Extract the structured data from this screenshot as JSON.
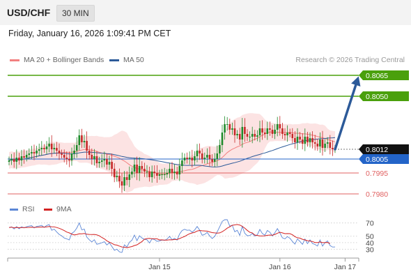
{
  "header": {
    "symbol": "USD/CHF",
    "timeframe": "30 MIN",
    "timestamp": "Friday, January 16, 2026 1:09:41 PM CET"
  },
  "legend": {
    "ma20": "MA 20 + Bollinger Bands",
    "ma50": "MA 50",
    "credit": "Research © 2026 Trading Central"
  },
  "rsi_legend": {
    "rsi": "RSI",
    "ma": "9MA"
  },
  "colors": {
    "up": "#1e8a2a",
    "down": "#c62828",
    "ma20": "#f28080",
    "band_fill": "#fbd9d9",
    "ma50": "#2c5a99",
    "target_line": "#4aa00c",
    "current_line": "#2364c8",
    "support_line": "#e06060",
    "rsi": "#5b86d6",
    "rsi_ma": "#d32222"
  },
  "chart_data": [
    {
      "type": "candlestick",
      "title": "USD/CHF",
      "ylim": [
        0.7974,
        0.8069
      ],
      "xticks": [
        {
          "index": 60,
          "label": "Jan 15"
        },
        {
          "index": 108,
          "label": "Jan 16"
        },
        {
          "index": 134,
          "label": "Jan 17"
        }
      ],
      "closes": [
        0.8004,
        0.8005,
        0.8003,
        0.8006,
        0.8004,
        0.8007,
        0.8006,
        0.8008,
        0.8009,
        0.801,
        0.8009,
        0.8011,
        0.8012,
        0.8013,
        0.8012,
        0.8014,
        0.8016,
        0.8012,
        0.8013,
        0.8011,
        0.8009,
        0.8008,
        0.8006,
        0.8005,
        0.8004,
        0.8009,
        0.8011,
        0.8015,
        0.8022,
        0.8017,
        0.8018,
        0.8011,
        0.8008,
        0.8005,
        0.8007,
        0.8002,
        0.8003,
        0.8004,
        0.8005,
        0.8001,
        0.8003,
        0.7998,
        0.7992,
        0.7993,
        0.7989,
        0.7986,
        0.7992,
        0.799,
        0.7994,
        0.7996,
        0.8001,
        0.7995,
        0.8,
        0.7998,
        0.7996,
        0.7996,
        0.7992,
        0.7996,
        0.7995,
        0.7993,
        0.7994,
        0.7994,
        0.7994,
        0.7995,
        0.7998,
        0.7995,
        0.7996,
        0.7994,
        0.8,
        0.8004,
        0.8006,
        0.8005,
        0.8006,
        0.8004,
        0.8007,
        0.8011,
        0.8009,
        0.8005,
        0.8006,
        0.8008,
        0.8005,
        0.8003,
        0.8005,
        0.8009,
        0.8015,
        0.8024,
        0.803,
        0.803,
        0.8026,
        0.8027,
        0.8022,
        0.8023,
        0.8019,
        0.8028,
        0.8023,
        0.8021,
        0.8021,
        0.8023,
        0.8021,
        0.8022,
        0.8027,
        0.8024,
        0.8023,
        0.8027,
        0.8026,
        0.8023,
        0.8026,
        0.803,
        0.8027,
        0.8023,
        0.8022,
        0.8024,
        0.8023,
        0.802,
        0.8017,
        0.8021,
        0.8019,
        0.8016,
        0.8021,
        0.8017,
        0.802,
        0.8017,
        0.8016,
        0.8014,
        0.8019,
        0.8013,
        0.8016,
        0.8017,
        0.8013,
        0.8012,
        0.8012
      ],
      "projection": {
        "from": 0.8012,
        "to": 0.8065
      },
      "levels": [
        {
          "value": 0.8065,
          "label": "0.8065",
          "kind": "target"
        },
        {
          "value": 0.805,
          "label": "0.8050",
          "kind": "target"
        },
        {
          "value": 0.8012,
          "label": "0.8012",
          "kind": "current"
        },
        {
          "value": 0.8005,
          "label": "0.8005",
          "kind": "pivot"
        },
        {
          "value": 0.7995,
          "label": "0.7995",
          "kind": "support"
        },
        {
          "value": 0.798,
          "label": "0.7980",
          "kind": "support"
        }
      ]
    },
    {
      "type": "line",
      "title": "RSI",
      "ylim": [
        25,
        75
      ],
      "yticks": [
        70,
        50,
        40,
        30
      ],
      "series": [
        {
          "name": "RSI",
          "values": [
            63.1,
            64.1,
            60.9,
            64.5,
            61.3,
            64.2,
            62.6,
            64.4,
            65.2,
            66,
            62.5,
            64.8,
            65.3,
            66.4,
            63.3,
            66.2,
            67.7,
            58.8,
            60.6,
            56.3,
            52.6,
            50.4,
            47.1,
            45.9,
            44.1,
            54.1,
            56.8,
            62.2,
            70.2,
            59.6,
            60.7,
            48.5,
            44.4,
            41.2,
            44.5,
            37.6,
            38.5,
            39.9,
            41.4,
            36.5,
            39.9,
            34.1,
            28.4,
            30,
            26.1,
            24.8,
            36.7,
            33.4,
            40.6,
            43.7,
            51.5,
            43,
            50.5,
            47.1,
            45,
            44.4,
            39.6,
            45.7,
            44.7,
            42,
            42.8,
            43.9,
            43.6,
            45.4,
            49.6,
            44.6,
            46.7,
            43.8,
            53.2,
            58.5,
            60.4,
            58.8,
            59.3,
            56,
            59.3,
            64.7,
            59.2,
            51.3,
            52.5,
            55.6,
            50.2,
            46.4,
            49.6,
            56.5,
            64.3,
            72.5,
            77,
            75.4,
            65.2,
            66.6,
            56.7,
            58.8,
            51.1,
            64.8,
            54.3,
            50.5,
            50.9,
            54,
            50,
            52,
            60.1,
            53.9,
            51.4,
            58.6,
            56,
            50.2,
            55.2,
            61.4,
            54.8,
            47.4,
            45.8,
            49.2,
            46.7,
            41.8,
            37.8,
            45.6,
            41.8,
            37.5,
            45.6,
            38.5,
            44.4,
            38.7,
            37.2,
            34.9,
            44.1,
            34.8,
            40,
            42.7,
            35.6,
            33.3,
            33.4
          ]
        },
        {
          "name": "9MA",
          "values": [
            63.1,
            63.6,
            62.7,
            63.2,
            62.8,
            63,
            63,
            63.2,
            63.3,
            63.6,
            63.3,
            63.4,
            63.7,
            63.9,
            63.7,
            64.2,
            64.6,
            64.3,
            64.2,
            63.1,
            61.9,
            60.3,
            58.4,
            56.2,
            54.9,
            53.1,
            51.8,
            52.4,
            53.6,
            53.4,
            53.9,
            52.9,
            52.5,
            52.3,
            52.6,
            51.9,
            50.4,
            47.9,
            45.8,
            42.8,
            40.7,
            39,
            36.8,
            36.3,
            34.8,
            33.4,
            33.1,
            32.3,
            33.2,
            34,
            35.6,
            36.7,
            39.2,
            41.7,
            45.3,
            46.3,
            46.6,
            46.1,
            46.1,
            45.8,
            44.2,
            44.3,
            43.9,
            43.9,
            44.4,
            44.3,
            44.8,
            44.8,
            46.3,
            48,
            49.5,
            51.7,
            53.6,
            54.8,
            55.7,
            57.8,
            58.5,
            58.1,
            57.9,
            57.5,
            56.4,
            55.3,
            54.9,
            54.6,
            54.9,
            56.7,
            59.2,
            62.1,
            64.1,
            66.5,
            67.1,
            67.7,
            66.9,
            64.9,
            62.1,
            58.7,
            55.8,
            54.9,
            51.6,
            51,
            50.3,
            50.3,
            50.4,
            51.2,
            51.6,
            51.4,
            52.6,
            54.4,
            55.9,
            54.9,
            53.7,
            53.8,
            53.7,
            52,
            49.1,
            47.5,
            46.9,
            45.1,
            44.2,
            43,
            42.6,
            41.7,
            40.2,
            40.1,
            41.2,
            40,
            40.2,
            40.3,
            38.8
          ]
        }
      ]
    }
  ]
}
